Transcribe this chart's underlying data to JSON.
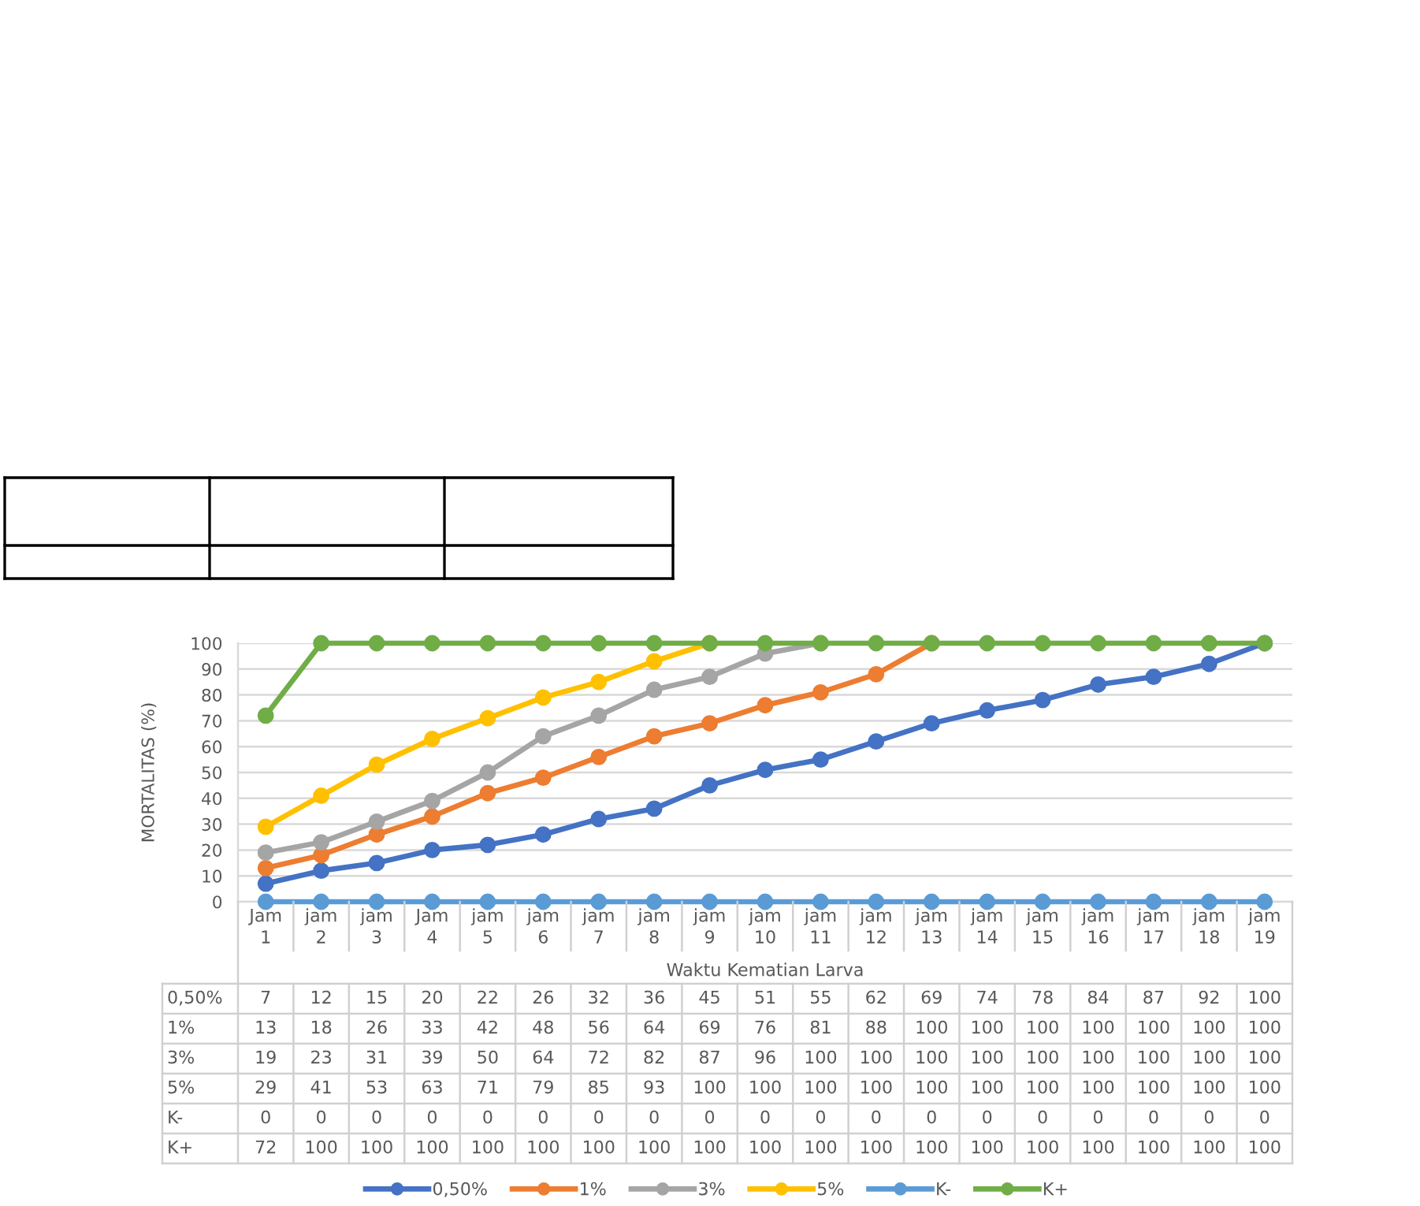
{
  "chart_data": {
    "type": "line",
    "ylabel": "MORTALITAS (%)",
    "xlabel": "Waktu Kematian Larva",
    "categories": [
      "Jam 1",
      "jam 2",
      "jam 3",
      "Jam 4",
      "jam 5",
      "jam 6",
      "jam 7",
      "jam 8",
      "jam 9",
      "jam 10",
      "jam 11",
      "jam 12",
      "jam 13",
      "jam 14",
      "jam 15",
      "jam 16",
      "jam 17",
      "jam 18",
      "jam 19"
    ],
    "series": [
      {
        "name": "0,50%",
        "color": "#4472c4",
        "values": [
          7,
          12,
          15,
          20,
          22,
          26,
          32,
          36,
          45,
          51,
          55,
          62,
          69,
          74,
          78,
          84,
          87,
          92,
          100
        ],
        "value_labels": [
          "7",
          "12",
          "15",
          "20",
          "22",
          "26",
          "32",
          "36",
          "45",
          "51",
          "55",
          "62",
          "69",
          "74",
          "78",
          "84",
          "87",
          "92",
          "100"
        ]
      },
      {
        "name": "1%",
        "color": "#ed7d31",
        "values": [
          13,
          18,
          26,
          33,
          42,
          48,
          56,
          64,
          69,
          76,
          81,
          88,
          100,
          null,
          null,
          null,
          null,
          null,
          null
        ],
        "value_labels": [
          "13",
          "18",
          "26",
          "33",
          "42",
          "48",
          "56",
          "64",
          "69",
          "76",
          "81",
          "88",
          "100",
          "100",
          "100",
          "100",
          "100",
          "100",
          "100"
        ]
      },
      {
        "name": "3%",
        "color": "#a5a5a5",
        "values": [
          19,
          23,
          31,
          39,
          50,
          64,
          72,
          82,
          87,
          96,
          100,
          null,
          null,
          null,
          null,
          null,
          null,
          null,
          null
        ],
        "value_labels": [
          "19",
          "23",
          "31",
          "39",
          "50",
          "64",
          "72",
          "82",
          "87",
          "96",
          "100",
          "100",
          "100",
          "100",
          "100",
          "100",
          "100",
          "100",
          "100"
        ]
      },
      {
        "name": "5%",
        "color": "#ffc000",
        "values": [
          29,
          41,
          53,
          63,
          71,
          79,
          85,
          93,
          100,
          null,
          null,
          null,
          null,
          null,
          null,
          null,
          null,
          null,
          null
        ],
        "value_labels": [
          "29",
          "41",
          "53",
          "63",
          "71",
          "79",
          "85",
          "93",
          "100",
          "100",
          "100",
          "100",
          "100",
          "100",
          "100",
          "100",
          "100",
          "100",
          "100"
        ]
      },
      {
        "name": "K-",
        "color": "#5b9bd5",
        "values": [
          0,
          0,
          0,
          0,
          0,
          0,
          0,
          0,
          0,
          0,
          0,
          0,
          0,
          0,
          0,
          0,
          0,
          0,
          0
        ],
        "value_labels": [
          "0",
          "0",
          "0",
          "0",
          "0",
          "0",
          "0",
          "0",
          "0",
          "0",
          "0",
          "0",
          "0",
          "0",
          "0",
          "0",
          "0",
          "0",
          "0"
        ]
      },
      {
        "name": "K+",
        "color": "#70ad47",
        "values": [
          72,
          100,
          100,
          100,
          100,
          100,
          100,
          100,
          100,
          100,
          100,
          100,
          100,
          100,
          100,
          100,
          100,
          100,
          100
        ],
        "value_labels": [
          "72",
          "100",
          "100",
          "100",
          "100",
          "100",
          "100",
          "100",
          "100",
          "100",
          "100",
          "100",
          "100",
          "100",
          "100",
          "100",
          "100",
          "100",
          "100"
        ]
      }
    ],
    "ylim": [
      0,
      100
    ],
    "yticks": [
      0,
      10,
      20,
      30,
      40,
      50,
      60,
      70,
      80,
      90,
      100
    ],
    "grid": "y",
    "legend": "bottom",
    "marker": "circle",
    "line_style": "solid"
  }
}
